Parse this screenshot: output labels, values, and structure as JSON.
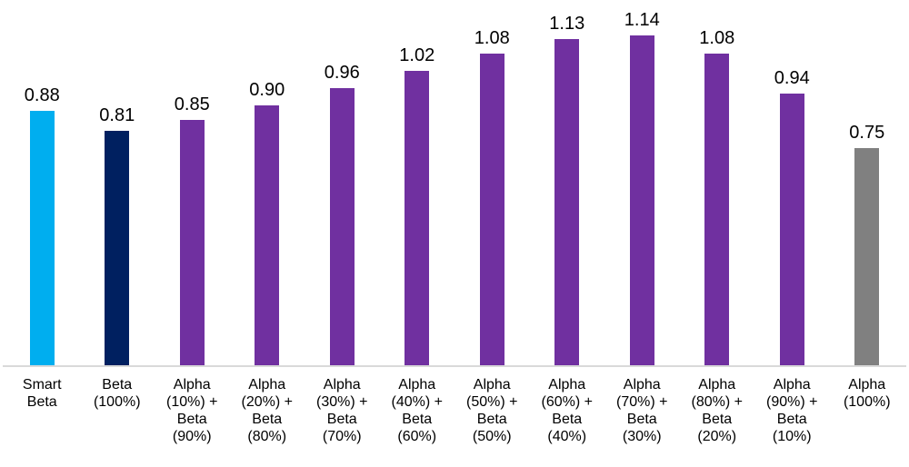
{
  "chart_data": {
    "type": "bar",
    "title": "",
    "xlabel": "",
    "ylabel": "",
    "ylim": [
      0,
      1.2
    ],
    "grid": false,
    "legend": false,
    "data_labels_shown": true,
    "categories": [
      "Smart Beta",
      "Beta (100%)",
      "Alpha (10%) + Beta (90%)",
      "Alpha (20%) + Beta (80%)",
      "Alpha (30%) + Beta (70%)",
      "Alpha (40%) + Beta (60%)",
      "Alpha (50%) + Beta (50%)",
      "Alpha (60%) + Beta (40%)",
      "Alpha (70%) + Beta (30%)",
      "Alpha (80%) + Beta (20%)",
      "Alpha (90%) + Beta (10%)",
      "Alpha (100%)"
    ],
    "category_lines": [
      [
        "Smart",
        "Beta"
      ],
      [
        "Beta",
        "(100%)"
      ],
      [
        "Alpha",
        "(10%) +",
        "Beta",
        "(90%)"
      ],
      [
        "Alpha",
        "(20%) +",
        "Beta",
        "(80%)"
      ],
      [
        "Alpha",
        "(30%) +",
        "Beta",
        "(70%)"
      ],
      [
        "Alpha",
        "(40%) +",
        "Beta",
        "(60%)"
      ],
      [
        "Alpha",
        "(50%) +",
        "Beta",
        "(50%)"
      ],
      [
        "Alpha",
        "(60%) +",
        "Beta",
        "(40%)"
      ],
      [
        "Alpha",
        "(70%) +",
        "Beta",
        "(30%)"
      ],
      [
        "Alpha",
        "(80%) +",
        "Beta",
        "(20%)"
      ],
      [
        "Alpha",
        "(90%) +",
        "Beta",
        "(10%)"
      ],
      [
        "Alpha",
        "(100%)"
      ]
    ],
    "values": [
      0.88,
      0.81,
      0.85,
      0.9,
      0.96,
      1.02,
      1.08,
      1.13,
      1.14,
      1.08,
      0.94,
      0.75
    ],
    "value_labels": [
      "0.88",
      "0.81",
      "0.85",
      "0.90",
      "0.96",
      "1.02",
      "1.08",
      "1.13",
      "1.14",
      "1.08",
      "0.94",
      "0.75"
    ],
    "bar_colors": [
      "#00AEEF",
      "#002060",
      "#7030A0",
      "#7030A0",
      "#7030A0",
      "#7030A0",
      "#7030A0",
      "#7030A0",
      "#7030A0",
      "#7030A0",
      "#7030A0",
      "#808080"
    ]
  },
  "colors": {
    "background": "#FFFFFF",
    "axis_line": "#D9D9D9",
    "label_text": "#000000"
  }
}
